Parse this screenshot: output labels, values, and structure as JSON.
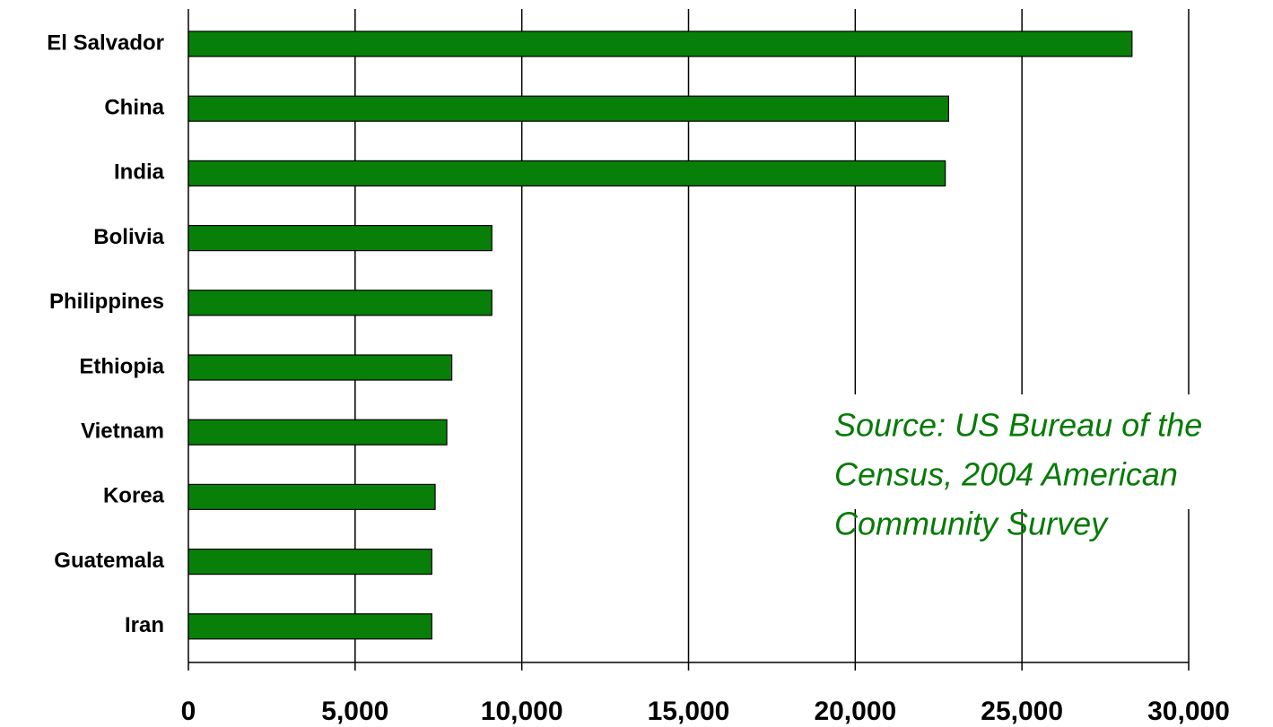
{
  "chart_data": {
    "type": "barh",
    "categories": [
      "El Salvador",
      "China",
      "India",
      "Bolivia",
      "Philippines",
      "Ethiopia",
      "Vietnam",
      "Korea",
      "Guatemala",
      "Iran"
    ],
    "values": [
      28300,
      22800,
      22700,
      9100,
      9100,
      7900,
      7750,
      7400,
      7300,
      7300
    ],
    "color": "#087f08",
    "xlim": [
      0,
      30000
    ],
    "xticks": [
      0,
      {
        "value": 5000,
        "label": "5,000"
      },
      {
        "value": 10000,
        "label": "10,000"
      },
      {
        "value": 15000,
        "label": "15,000"
      },
      {
        "value": 20000,
        "label": "20,000"
      },
      {
        "value": 25000,
        "label": "25,000"
      },
      {
        "value": 30000,
        "label": "30,000"
      }
    ],
    "grid": true,
    "annotation": [
      "Source: US Bureau of the",
      "Census, 2004 American",
      "Community Survey"
    ]
  }
}
